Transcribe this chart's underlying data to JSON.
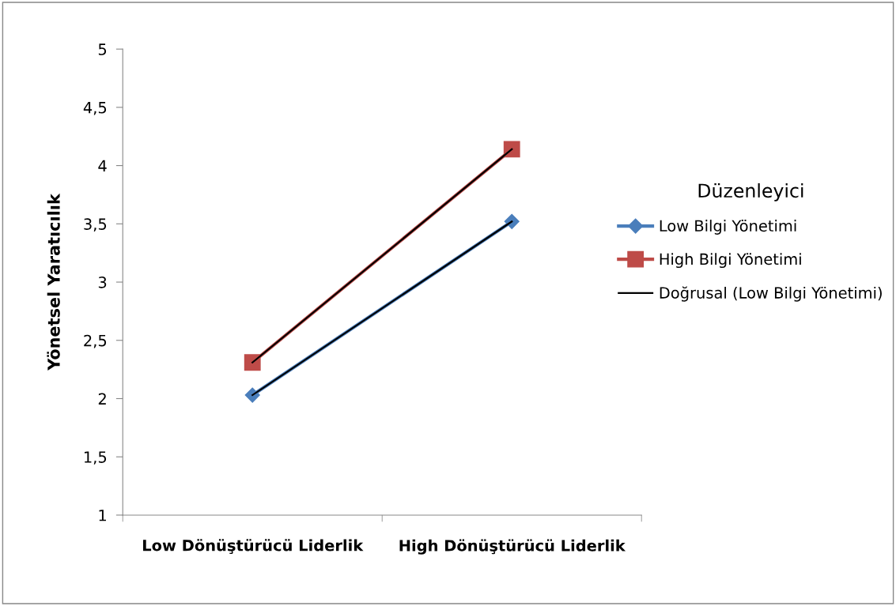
{
  "chart_data": {
    "type": "line",
    "ylabel": "Yönetsel Yaratıcılık",
    "legend_title": "Düzenleyici",
    "categories": [
      "Low Dönüştürücü Liderlik",
      "High Dönüştürücü Liderlik"
    ],
    "series": [
      {
        "name": "Low Bilgi Yönetimi",
        "color": "#4a7ebb",
        "values": [
          2.03,
          3.52
        ],
        "marker": "diamond"
      },
      {
        "name": "High Bilgi Yönetimi",
        "color": "#be4b48",
        "values": [
          2.31,
          4.14
        ],
        "marker": "square"
      },
      {
        "name": "Doğrusal (Low Bilgi Yönetimi)",
        "color": "#000000",
        "values": [
          2.03,
          3.52
        ],
        "marker": "none"
      },
      {
        "color": "#000000",
        "values": [
          2.31,
          4.14
        ],
        "marker": "none"
      }
    ],
    "ylim": [
      1,
      5
    ],
    "yticks": [
      1,
      {
        "value": 1.5,
        "label": "1,5"
      },
      2,
      {
        "value": 2.5,
        "label": "2,5"
      },
      3,
      {
        "value": 3.5,
        "label": "3,5"
      },
      4,
      {
        "value": 4.5,
        "label": "4,5"
      },
      5
    ],
    "grid": false,
    "legend": "right"
  }
}
